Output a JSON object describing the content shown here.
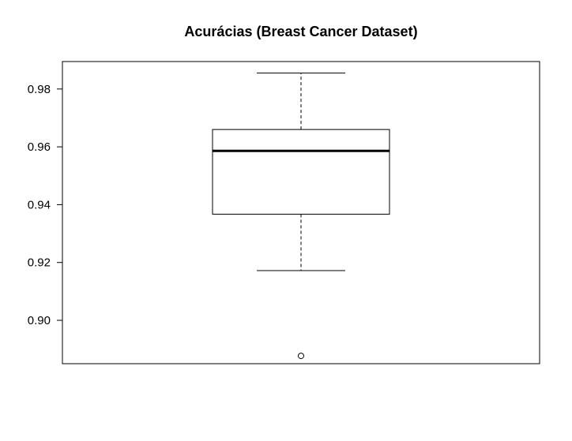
{
  "chart_data": {
    "type": "box",
    "title": "Acurácias (Breast Cancer Dataset)",
    "xlabel": "",
    "ylabel": "",
    "ylim": [
      0.885,
      0.9895
    ],
    "y_ticks": [
      0.9,
      0.92,
      0.94,
      0.96,
      0.98
    ],
    "y_tick_labels": [
      "0.90",
      "0.92",
      "0.94",
      "0.96",
      "0.98"
    ],
    "grid": false,
    "box": {
      "whisker_low": 0.9172,
      "q1": 0.9367,
      "median": 0.9586,
      "q3": 0.966,
      "whisker_high": 0.9855,
      "outliers": [
        0.8877
      ]
    },
    "colors": {
      "stroke": "#000000",
      "background": "#ffffff"
    }
  }
}
